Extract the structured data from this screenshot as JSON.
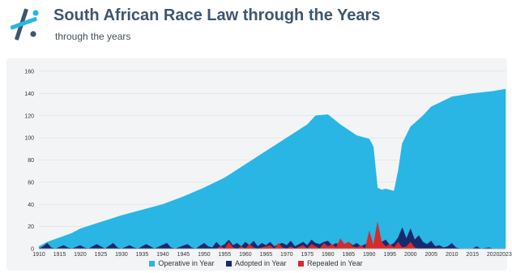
{
  "header": {
    "title": "South African Race Law through the Years",
    "subtitle": "through the years"
  },
  "colors": {
    "operative": "#29b6e4",
    "adopted": "#172a6e",
    "repealed": "#d72a2a",
    "logo_blue": "#3d5670",
    "logo_cyan": "#29b6e4"
  },
  "chart_data": {
    "type": "area",
    "title": "South African Race Law through the Years",
    "xlabel": "",
    "ylabel": "",
    "xlim": [
      1910,
      2023
    ],
    "ylim": [
      0,
      160
    ],
    "x_ticks": [
      1910,
      1915,
      1920,
      1925,
      1930,
      1935,
      1940,
      1945,
      1950,
      1955,
      1960,
      1965,
      1970,
      1975,
      1980,
      1985,
      1990,
      1995,
      2000,
      2005,
      2010,
      2015,
      2020,
      2023
    ],
    "y_ticks": [
      0,
      20,
      40,
      60,
      80,
      100,
      120,
      140,
      160
    ],
    "grid": true,
    "legend_position": "bottom-center",
    "series": [
      {
        "name": "Operative in Year",
        "x": [
          1910,
          1912,
          1915,
          1918,
          1920,
          1925,
          1930,
          1935,
          1940,
          1945,
          1950,
          1955,
          1960,
          1965,
          1970,
          1975,
          1977,
          1980,
          1983,
          1987,
          1990,
          1991,
          1992,
          1993,
          1994,
          1996,
          1997,
          1998,
          2000,
          2003,
          2005,
          2010,
          2015,
          2020,
          2023
        ],
        "values": [
          2,
          6,
          10,
          14,
          18,
          24,
          30,
          35,
          40,
          47,
          55,
          64,
          76,
          88,
          100,
          112,
          120,
          121,
          112,
          102,
          99,
          92,
          55,
          53,
          54,
          52,
          70,
          95,
          110,
          120,
          128,
          137,
          140,
          142,
          144
        ]
      },
      {
        "name": "Adopted in Year",
        "x": [
          1910,
          1911,
          1912,
          1913,
          1914,
          1916,
          1917,
          1918,
          1920,
          1921,
          1922,
          1924,
          1925,
          1926,
          1928,
          1929,
          1930,
          1932,
          1933,
          1934,
          1936,
          1937,
          1938,
          1941,
          1942,
          1943,
          1946,
          1947,
          1948,
          1950,
          1951,
          1952,
          1953,
          1954,
          1955,
          1956,
          1957,
          1958,
          1959,
          1960,
          1961,
          1962,
          1963,
          1964,
          1965,
          1966,
          1967,
          1968,
          1969,
          1970,
          1971,
          1972,
          1973,
          1974,
          1975,
          1976,
          1977,
          1978,
          1979,
          1980,
          1981,
          1982,
          1983,
          1984,
          1985,
          1986,
          1987,
          1988,
          1989,
          1990,
          1991,
          1992,
          1993,
          1994,
          1995,
          1996,
          1997,
          1998,
          1999,
          2000,
          2001,
          2002,
          2003,
          2004,
          2005,
          2006,
          2007,
          2008,
          2009,
          2010,
          2011,
          2012,
          2015,
          2016,
          2017,
          2019,
          2020,
          2023
        ],
        "values": [
          0,
          2,
          5,
          1,
          0,
          3,
          1,
          0,
          3,
          1,
          0,
          4,
          2,
          0,
          5,
          1,
          0,
          3,
          1,
          0,
          4,
          2,
          0,
          5,
          1,
          0,
          4,
          1,
          0,
          5,
          2,
          1,
          6,
          2,
          4,
          8,
          3,
          5,
          2,
          6,
          3,
          7,
          2,
          5,
          3,
          6,
          2,
          4,
          5,
          3,
          7,
          2,
          4,
          6,
          3,
          8,
          5,
          4,
          6,
          7,
          3,
          5,
          2,
          4,
          6,
          3,
          5,
          2,
          4,
          3,
          2,
          4,
          6,
          8,
          3,
          5,
          10,
          19,
          9,
          18,
          8,
          12,
          6,
          4,
          7,
          2,
          3,
          1,
          2,
          5,
          1,
          0,
          0,
          2,
          0,
          1,
          0,
          0
        ]
      },
      {
        "name": "Repealed in Year",
        "x": [
          1953,
          1954,
          1955,
          1956,
          1957,
          1958,
          1959,
          1960,
          1961,
          1962,
          1963,
          1966,
          1967,
          1968,
          1969,
          1970,
          1971,
          1972,
          1974,
          1975,
          1976,
          1977,
          1978,
          1979,
          1980,
          1981,
          1982,
          1983,
          1984,
          1985,
          1986,
          1987,
          1988,
          1989,
          1990,
          1991,
          1992,
          1993,
          1994,
          1995,
          1996,
          1997,
          1998,
          1999,
          2000,
          2001,
          2002
        ],
        "values": [
          0,
          2,
          0,
          6,
          1,
          0,
          2,
          0,
          4,
          1,
          0,
          3,
          0,
          5,
          1,
          0,
          2,
          0,
          3,
          0,
          4,
          2,
          0,
          5,
          2,
          4,
          1,
          9,
          4,
          6,
          2,
          1,
          3,
          0,
          16,
          3,
          24,
          6,
          2,
          4,
          1,
          6,
          1,
          2,
          6,
          1,
          0
        ]
      }
    ]
  }
}
